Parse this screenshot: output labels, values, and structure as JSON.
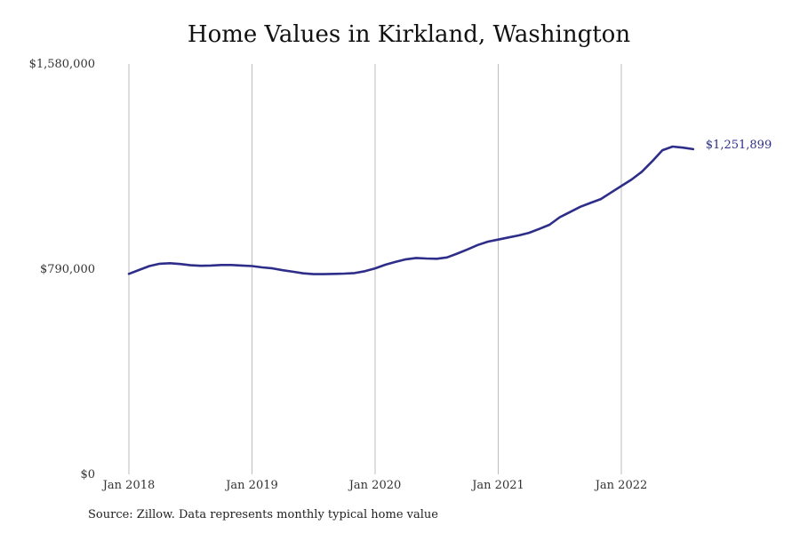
{
  "chart_data": {
    "type": "line",
    "title": "Home Values in Kirkland, Washington",
    "source": "Source: Zillow. Data represents monthly typical home value",
    "xlabel": "",
    "ylabel": "",
    "ylim": [
      0,
      1580000
    ],
    "y_ticks": [
      {
        "value": 0,
        "label": "$0"
      },
      {
        "value": 790000,
        "label": "$790,000"
      },
      {
        "value": 1580000,
        "label": "$1,580,000"
      }
    ],
    "x_ticks": [
      {
        "date": "2018-01",
        "label": "Jan 2018"
      },
      {
        "date": "2019-01",
        "label": "Jan 2019"
      },
      {
        "date": "2020-01",
        "label": "Jan 2020"
      },
      {
        "date": "2021-01",
        "label": "Jan 2021"
      },
      {
        "date": "2022-01",
        "label": "Jan 2022"
      }
    ],
    "grid": "vertical",
    "line_color": "#2e2e8a",
    "end_label": "$1,251,899",
    "series": [
      {
        "x": [
          "2018-01",
          "2018-02",
          "2018-03",
          "2018-04",
          "2018-05",
          "2018-06",
          "2018-07",
          "2018-08",
          "2018-09",
          "2018-10",
          "2018-11",
          "2018-12",
          "2019-01",
          "2019-02",
          "2019-03",
          "2019-04",
          "2019-05",
          "2019-06",
          "2019-07",
          "2019-08",
          "2019-09",
          "2019-10",
          "2019-11",
          "2019-12",
          "2020-01",
          "2020-02",
          "2020-03",
          "2020-04",
          "2020-05",
          "2020-06",
          "2020-07",
          "2020-08",
          "2020-09",
          "2020-10",
          "2020-11",
          "2020-12",
          "2021-01",
          "2021-02",
          "2021-03",
          "2021-04",
          "2021-05",
          "2021-06",
          "2021-07",
          "2021-08",
          "2021-09",
          "2021-10",
          "2021-11",
          "2021-12",
          "2022-01",
          "2022-02",
          "2022-03",
          "2022-04",
          "2022-05",
          "2022-06",
          "2022-07",
          "2022-08"
        ],
        "values": [
          772000,
          787000,
          802000,
          811000,
          813000,
          810000,
          805000,
          803000,
          804000,
          806000,
          806000,
          804000,
          802000,
          797000,
          793000,
          786000,
          780000,
          774000,
          771000,
          771000,
          772000,
          773000,
          775000,
          782000,
          793000,
          807000,
          818000,
          828000,
          833000,
          831000,
          830000,
          835000,
          850000,
          866000,
          883000,
          896000,
          904000,
          912000,
          920000,
          930000,
          945000,
          961000,
          990000,
          1010000,
          1030000,
          1045000,
          1060000,
          1085000,
          1110000,
          1135000,
          1165000,
          1205000,
          1248000,
          1262000,
          1258000,
          1251899
        ]
      }
    ]
  }
}
